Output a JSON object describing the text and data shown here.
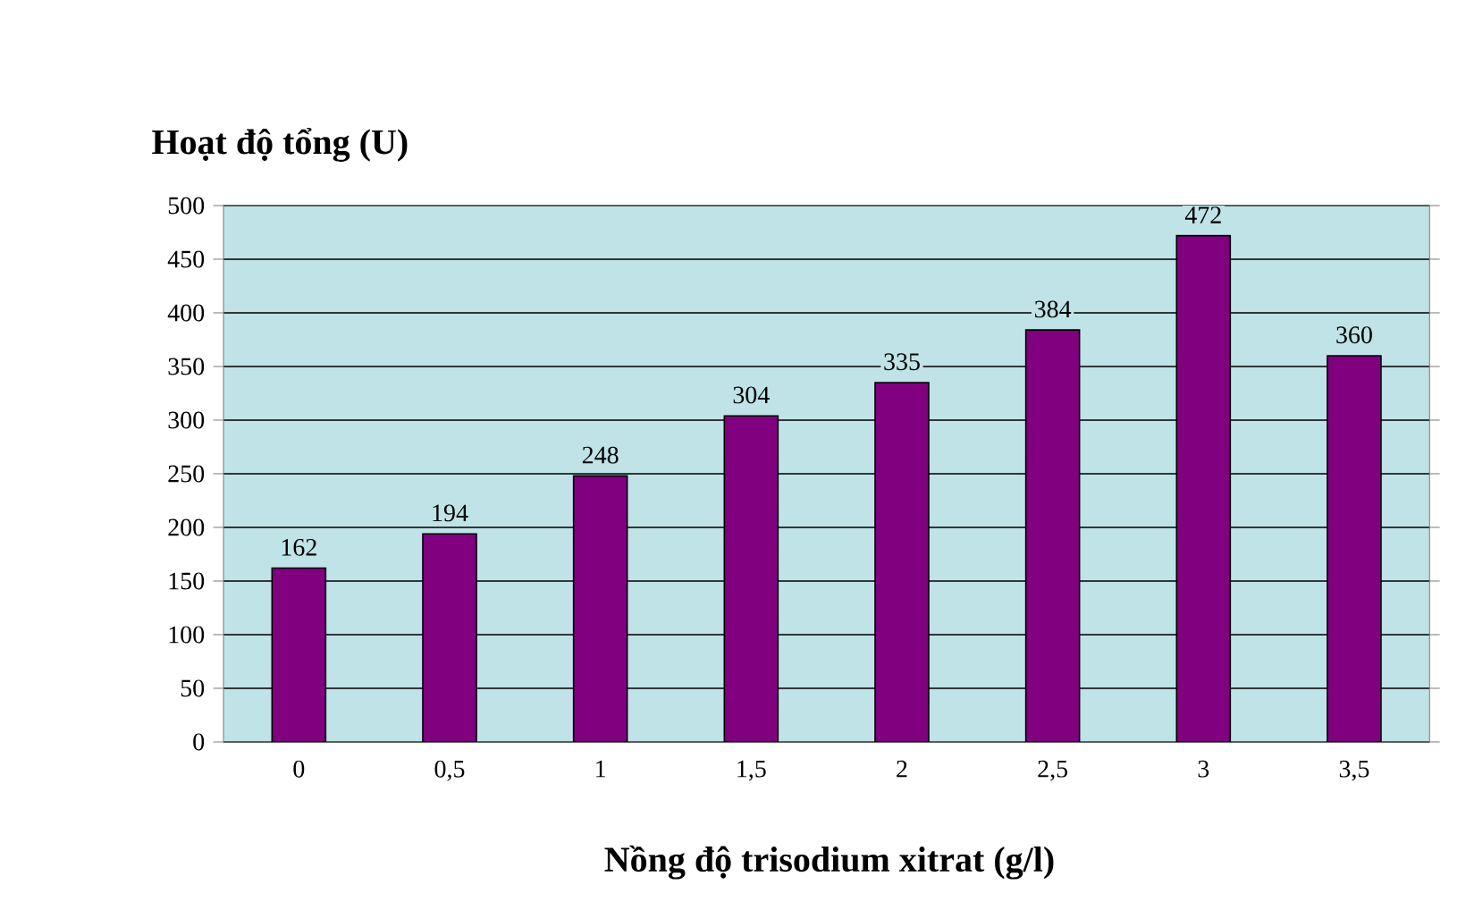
{
  "chart_data": {
    "type": "bar",
    "title": "Hoạt độ tổng (U)",
    "xlabel": "Nồng độ trisodium xitrat (g/l)",
    "categories": [
      "0",
      "0,5",
      "1",
      "1,5",
      "2",
      "2,5",
      "3",
      "3,5"
    ],
    "values": [
      162,
      194,
      248,
      304,
      335,
      384,
      472,
      360
    ],
    "color": "#800080",
    "ylim": [
      0,
      500
    ],
    "yticks": [
      0,
      50,
      100,
      150,
      200,
      250,
      300,
      350,
      400,
      450,
      500
    ],
    "grid": "y",
    "data_labels": true
  }
}
